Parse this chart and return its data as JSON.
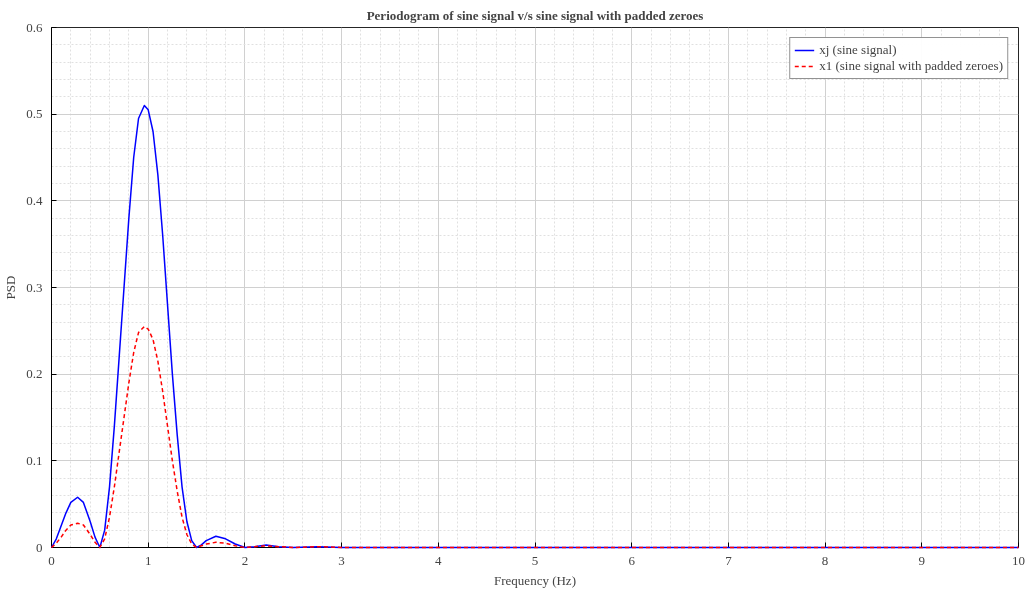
{
  "chart_data": {
    "type": "line",
    "title": "Periodogram of sine signal v/s sine signal with padded zeroes",
    "xlabel": "Frequency (Hz)",
    "ylabel": "PSD",
    "xlim": [
      0,
      10
    ],
    "ylim": [
      0,
      0.6
    ],
    "xticks": [
      0,
      1,
      2,
      3,
      4,
      5,
      6,
      7,
      8,
      9,
      10
    ],
    "yticks": [
      0,
      0.1,
      0.2,
      0.3,
      0.4,
      0.5,
      0.6
    ],
    "grid": true,
    "legend": "top right",
    "x": [
      0,
      0.05,
      0.1,
      0.15,
      0.2,
      0.27,
      0.33,
      0.4,
      0.45,
      0.5,
      0.55,
      0.6,
      0.65,
      0.7,
      0.75,
      0.8,
      0.85,
      0.9,
      0.96,
      1.0,
      1.05,
      1.1,
      1.15,
      1.2,
      1.25,
      1.3,
      1.35,
      1.4,
      1.45,
      1.5,
      1.55,
      1.6,
      1.7,
      1.8,
      1.9,
      2.0,
      2.1,
      2.22,
      2.35,
      2.5,
      2.75,
      3.0,
      3.5,
      4,
      5,
      6,
      7,
      8,
      9,
      10
    ],
    "series": [
      {
        "name": "xj (sine signal)",
        "color": "#0000ff",
        "line_style": "solid",
        "values": [
          0,
          0.01,
          0.025,
          0.04,
          0.052,
          0.058,
          0.052,
          0.03,
          0.012,
          0,
          0.02,
          0.07,
          0.14,
          0.22,
          0.3,
          0.38,
          0.45,
          0.495,
          0.51,
          0.505,
          0.48,
          0.43,
          0.36,
          0.28,
          0.2,
          0.13,
          0.07,
          0.03,
          0.008,
          0,
          0.003,
          0.008,
          0.013,
          0.01,
          0.004,
          0,
          0.001,
          0.003,
          0.001,
          0,
          0.001,
          0,
          0,
          0,
          0,
          0,
          0,
          0,
          0,
          0
        ]
      },
      {
        "name": "x1 (sine signal with padded zeroes)",
        "color": "#ff0000",
        "line_style": "dashed",
        "values": [
          0,
          0.005,
          0.012,
          0.02,
          0.026,
          0.028,
          0.026,
          0.015,
          0.006,
          0,
          0.01,
          0.035,
          0.07,
          0.11,
          0.15,
          0.19,
          0.225,
          0.248,
          0.255,
          0.252,
          0.24,
          0.215,
          0.18,
          0.14,
          0.1,
          0.065,
          0.035,
          0.015,
          0.004,
          0,
          0.002,
          0.004,
          0.006,
          0.005,
          0.002,
          0,
          0.001,
          0.002,
          0.001,
          0,
          0.001,
          0,
          0,
          0,
          0,
          0,
          0,
          0,
          0,
          0
        ]
      }
    ]
  }
}
